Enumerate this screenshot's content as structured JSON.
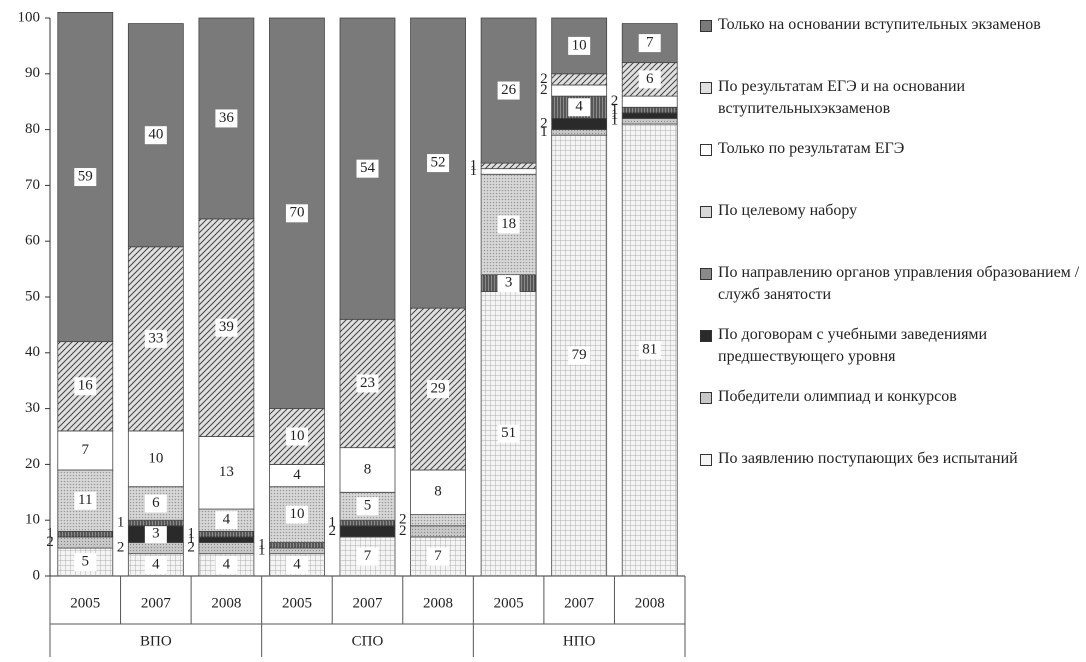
{
  "chart_data": {
    "type": "stacked_bar",
    "categories": [
      "2005",
      "2007",
      "2008",
      "2005",
      "2007",
      "2008",
      "2005",
      "2007",
      "2008"
    ],
    "groups": [
      "ВПО",
      "СПО",
      "НПО"
    ],
    "ylim": [
      0,
      100
    ],
    "yticks": [
      0,
      10,
      20,
      30,
      40,
      50,
      60,
      70,
      80,
      90,
      100
    ],
    "series": [
      {
        "name": "По заявлению поступающих без испытаний",
        "color": "#f4f4f4",
        "values": [
          5,
          4,
          4,
          4,
          7,
          7,
          51,
          79,
          81
        ]
      },
      {
        "name": "Победители олимпиад и конкурсов",
        "color": "#c8c8c8",
        "values": [
          2,
          2,
          2,
          1,
          0,
          2,
          0,
          1,
          1
        ]
      },
      {
        "name": "По договорам с учебными заведениями предшествующего уровня",
        "color": "#2a2a2a",
        "values": [
          0,
          3,
          1,
          0,
          2,
          0,
          0,
          2,
          1
        ]
      },
      {
        "name": "По направлению органов управления образованием / служб занятости",
        "color": "#8a8a8a",
        "values": [
          1,
          1,
          1,
          1,
          1,
          0,
          3,
          4,
          1
        ]
      },
      {
        "name": "По целевому набору",
        "color": "#d8d8d8",
        "values": [
          11,
          6,
          4,
          10,
          5,
          2,
          18,
          0,
          0
        ]
      },
      {
        "name": "Только по результатам ЕГЭ",
        "color": "#ffffff",
        "values": [
          7,
          10,
          13,
          4,
          8,
          8,
          1,
          2,
          2
        ]
      },
      {
        "name": "По результатам ЕГЭ и на основании вступительныхэкзаменов",
        "color": "#e0e0e0",
        "values": [
          16,
          33,
          39,
          10,
          23,
          29,
          1,
          2,
          6
        ]
      },
      {
        "name": "Только на основании вступительных экзаменов",
        "color": "#7a7a7a",
        "values": [
          59,
          40,
          36,
          70,
          54,
          52,
          26,
          10,
          7
        ]
      }
    ]
  }
}
